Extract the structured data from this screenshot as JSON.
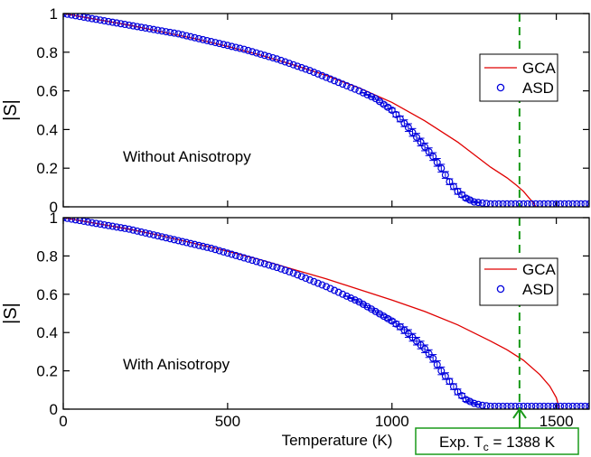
{
  "chart_data": [
    {
      "type": "line",
      "panel_label": "Without Anisotropy",
      "xlabel": "",
      "ylabel": "|S|",
      "xlim": [
        0,
        1600
      ],
      "ylim": [
        0,
        1
      ],
      "x_ticks": [
        0,
        500,
        1000,
        1500
      ],
      "x_tick_labels_shown": false,
      "y_ticks": [
        0,
        0.2,
        0.4,
        0.6,
        0.8,
        1
      ],
      "y_tick_labels": [
        "0",
        "0.2",
        "0.4",
        "0.6",
        "0.8",
        "1"
      ],
      "legend_position": "top-right",
      "series": [
        {
          "name": "GCA",
          "style": "line",
          "color": "#e00000",
          "x": [
            0,
            50,
            100,
            200,
            300,
            400,
            500,
            600,
            700,
            800,
            900,
            1000,
            1100,
            1200,
            1300,
            1350,
            1380,
            1400,
            1420,
            1430,
            1438
          ],
          "y": [
            1.0,
            0.985,
            0.97,
            0.94,
            0.905,
            0.87,
            0.83,
            0.785,
            0.735,
            0.68,
            0.615,
            0.54,
            0.445,
            0.335,
            0.205,
            0.15,
            0.11,
            0.08,
            0.04,
            0.02,
            0.0
          ]
        },
        {
          "name": "ASD",
          "style": "markers",
          "color": "#0000dd",
          "x": [
            0,
            50,
            100,
            150,
            200,
            250,
            300,
            350,
            400,
            450,
            500,
            550,
            600,
            650,
            700,
            750,
            800,
            850,
            900,
            950,
            1000,
            1025,
            1050,
            1075,
            1100,
            1125,
            1150,
            1175,
            1200,
            1225,
            1250,
            1275,
            1300,
            1350,
            1400,
            1450,
            1500,
            1550,
            1600
          ],
          "y": [
            1.0,
            0.985,
            0.97,
            0.955,
            0.94,
            0.925,
            0.91,
            0.895,
            0.875,
            0.855,
            0.835,
            0.815,
            0.79,
            0.765,
            0.735,
            0.705,
            0.67,
            0.635,
            0.6,
            0.56,
            0.5,
            0.455,
            0.41,
            0.36,
            0.31,
            0.26,
            0.2,
            0.13,
            0.08,
            0.045,
            0.025,
            0.02,
            0.015,
            0.015,
            0.015,
            0.015,
            0.015,
            0.015,
            0.015
          ],
          "error": [
            0,
            0,
            0,
            0,
            0,
            0,
            0,
            0,
            0,
            0,
            0,
            0,
            0,
            0,
            0,
            0,
            0,
            0,
            0,
            0.005,
            0.01,
            0.015,
            0.02,
            0.02,
            0.02,
            0.02,
            0.02,
            0.015,
            0.015,
            0.01,
            0.005,
            0,
            0,
            0,
            0,
            0,
            0,
            0,
            0
          ]
        }
      ],
      "vertical_line": {
        "x": 1388,
        "style": "dashed",
        "color": "#1a9a1a"
      }
    },
    {
      "type": "line",
      "panel_label": "With Anisotropy",
      "xlabel": "Temperature (K)",
      "ylabel": "|S|",
      "xlim": [
        0,
        1600
      ],
      "ylim": [
        0,
        1
      ],
      "x_ticks": [
        0,
        500,
        1000,
        1500
      ],
      "x_tick_labels": [
        "0",
        "500",
        "1000",
        "1500"
      ],
      "y_ticks": [
        0,
        0.2,
        0.4,
        0.6,
        0.8,
        1
      ],
      "y_tick_labels": [
        "0",
        "0.2",
        "0.4",
        "0.6",
        "0.8",
        "1"
      ],
      "legend_position": "top-right",
      "series": [
        {
          "name": "GCA",
          "style": "line",
          "color": "#e00000",
          "x": [
            0,
            50,
            100,
            200,
            300,
            400,
            500,
            600,
            700,
            800,
            900,
            1000,
            1100,
            1200,
            1300,
            1350,
            1400,
            1450,
            1480,
            1500,
            1510
          ],
          "y": [
            1.0,
            0.985,
            0.97,
            0.94,
            0.905,
            0.865,
            0.825,
            0.78,
            0.73,
            0.68,
            0.625,
            0.57,
            0.51,
            0.44,
            0.355,
            0.31,
            0.255,
            0.18,
            0.12,
            0.06,
            0.0
          ]
        },
        {
          "name": "ASD",
          "style": "markers",
          "color": "#0000dd",
          "x": [
            0,
            50,
            100,
            150,
            200,
            250,
            300,
            350,
            400,
            450,
            500,
            550,
            600,
            650,
            700,
            750,
            800,
            850,
            900,
            950,
            1000,
            1025,
            1050,
            1075,
            1100,
            1125,
            1150,
            1175,
            1200,
            1225,
            1250,
            1275,
            1300,
            1350,
            1400,
            1450,
            1500,
            1550,
            1600
          ],
          "y": [
            1.0,
            0.985,
            0.97,
            0.955,
            0.94,
            0.92,
            0.9,
            0.88,
            0.86,
            0.84,
            0.815,
            0.79,
            0.765,
            0.74,
            0.71,
            0.675,
            0.64,
            0.6,
            0.56,
            0.51,
            0.46,
            0.43,
            0.395,
            0.355,
            0.315,
            0.265,
            0.2,
            0.145,
            0.09,
            0.05,
            0.03,
            0.02,
            0.015,
            0.015,
            0.015,
            0.015,
            0.015,
            0.015,
            0.015
          ],
          "error": [
            0,
            0,
            0,
            0,
            0,
            0,
            0,
            0,
            0,
            0,
            0,
            0,
            0,
            0,
            0,
            0,
            0,
            0,
            0.005,
            0.005,
            0.01,
            0.015,
            0.02,
            0.02,
            0.02,
            0.02,
            0.02,
            0.015,
            0.015,
            0.01,
            0.005,
            0,
            0,
            0,
            0,
            0,
            0,
            0,
            0
          ]
        }
      ],
      "vertical_line": {
        "x": 1388,
        "style": "dashed",
        "color": "#1a9a1a"
      },
      "annotation": {
        "text": "Exp. T",
        "subscript": "c",
        "suffix": " = 1388 K",
        "border_color": "#1a9a1a"
      }
    }
  ]
}
